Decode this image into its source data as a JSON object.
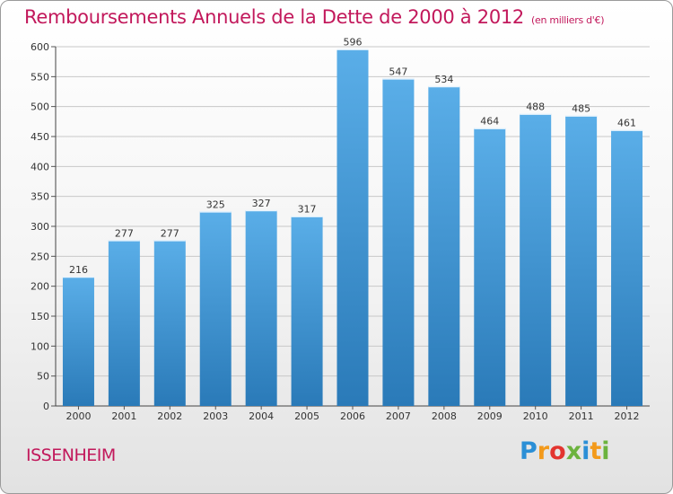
{
  "chart_data": {
    "type": "bar",
    "title": "Remboursements Annuels de la Dette de 2000 à 2012",
    "subtitle": "(en milliers d'€)",
    "categories": [
      "2000",
      "2001",
      "2002",
      "2003",
      "2004",
      "2005",
      "2006",
      "2007",
      "2008",
      "2009",
      "2010",
      "2011",
      "2012"
    ],
    "values": [
      216,
      277,
      277,
      325,
      327,
      317,
      596,
      547,
      534,
      464,
      488,
      485,
      461
    ],
    "ylim": [
      0,
      600
    ],
    "yticks": [
      0,
      50,
      100,
      150,
      200,
      250,
      300,
      350,
      400,
      450,
      500,
      550,
      600
    ],
    "xlabel": "",
    "ylabel": "",
    "grid": true
  },
  "commune": "ISSENHEIM",
  "logo": {
    "letters": [
      "P",
      "r",
      "o",
      "x",
      "i",
      "t",
      "i"
    ],
    "colors": [
      "#2b8fd6",
      "#f39a1b",
      "#e3342f",
      "#6cb33e",
      "#2b8fd6",
      "#f39a1b",
      "#6cb33e"
    ]
  },
  "colors": {
    "bar_top": "#5aaee8",
    "bar_bottom": "#2a7ab8",
    "title": "#c2185b"
  }
}
